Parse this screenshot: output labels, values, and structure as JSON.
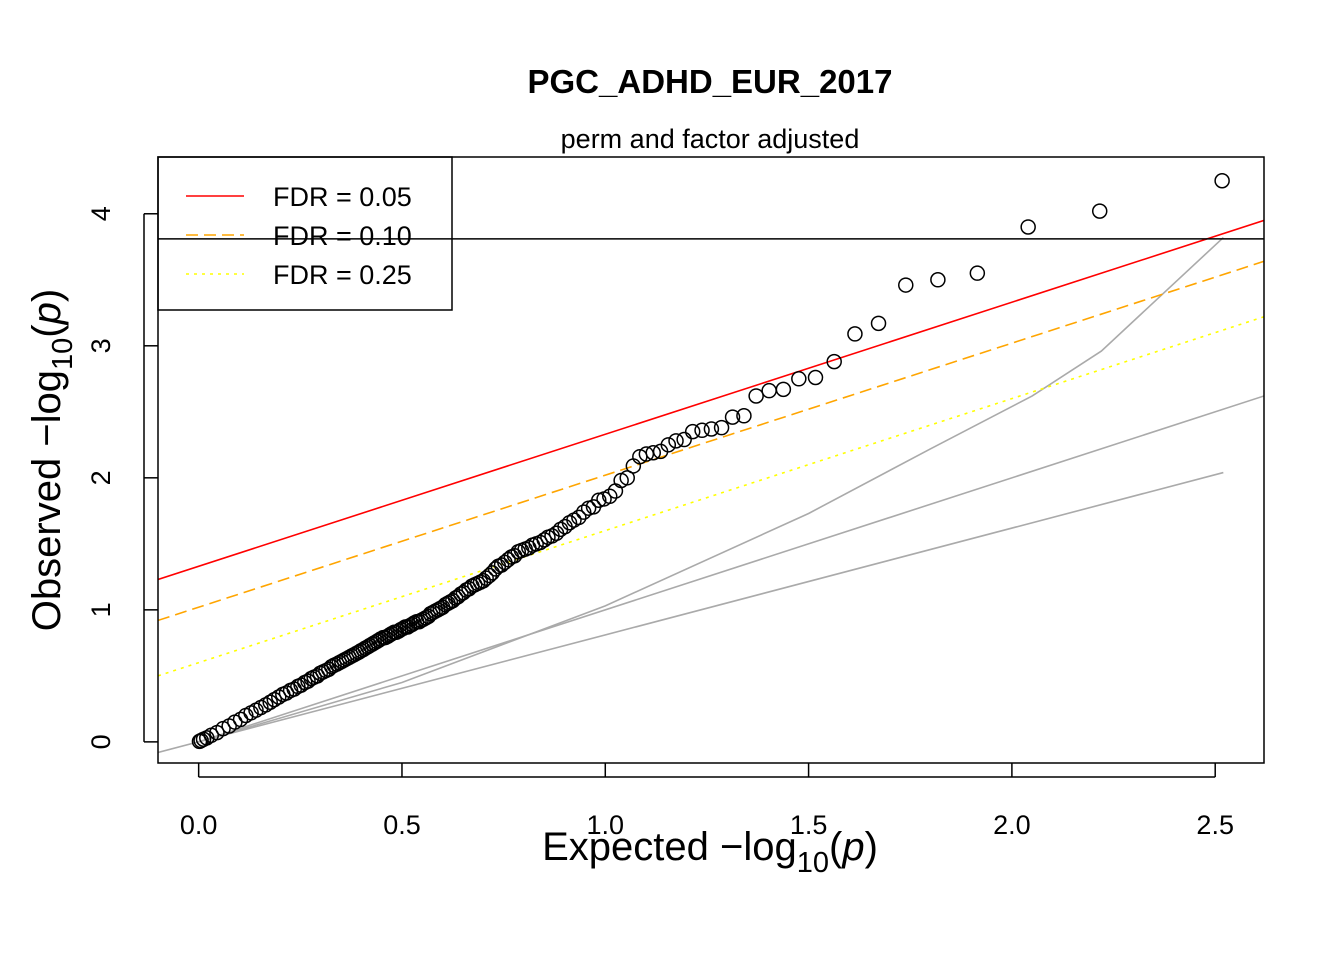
{
  "chart_data": {
    "type": "scatter",
    "title": "PGC_ADHD_EUR_2017",
    "subtitle": "perm and factor adjusted",
    "xlabel": {
      "prefix": "Expected  −log",
      "sub": "10",
      "open": "(",
      "italic": "p",
      "close": ")"
    },
    "ylabel": {
      "prefix": "Observed  −log",
      "sub": "10",
      "open": "(",
      "italic": "p",
      "close": ")"
    },
    "xlim": [
      -0.1,
      2.62
    ],
    "ylim": [
      -0.16,
      4.43
    ],
    "x_ticks": [
      {
        "value": 0,
        "label": "0.0"
      },
      {
        "value": 0.5,
        "label": "0.5"
      },
      {
        "value": 1.0,
        "label": "1.0"
      },
      {
        "value": 1.5,
        "label": "1.5"
      },
      {
        "value": 2.0,
        "label": "2.0"
      },
      {
        "value": 2.5,
        "label": "2.5"
      }
    ],
    "y_ticks": [
      {
        "value": 0,
        "label": "0"
      },
      {
        "value": 1,
        "label": "1"
      },
      {
        "value": 2,
        "label": "2"
      },
      {
        "value": 3,
        "label": "3"
      },
      {
        "value": 4,
        "label": "4"
      }
    ],
    "legend": {
      "position": "top-left",
      "entries": [
        {
          "label": "FDR = 0.05",
          "color": "#ff0000",
          "dash": "solid"
        },
        {
          "label": "FDR = 0.10",
          "color": "#ffa500",
          "dash": "dashed"
        },
        {
          "label": "FDR = 0.25",
          "color": "#ffff00",
          "dash": "dotted"
        }
      ]
    },
    "fdr_lines": [
      {
        "name": "FDR = 0.05",
        "intercept": 1.33,
        "slope": 1.0,
        "color": "#ff0000",
        "dash": "solid"
      },
      {
        "name": "FDR = 0.10",
        "intercept": 1.02,
        "slope": 1.0,
        "color": "#ffa500",
        "dash": "dashed"
      },
      {
        "name": "FDR = 0.25",
        "intercept": 0.6,
        "slope": 1.0,
        "color": "#ffff00",
        "dash": "dotted"
      }
    ],
    "hline": {
      "y": 3.81,
      "color": "#000000"
    },
    "reference_lines": [
      {
        "points": [
          [
            -0.1,
            -0.08
          ],
          [
            2.52,
            2.04
          ]
        ],
        "color": "#aaaaaa"
      },
      {
        "points": [
          [
            0,
            0
          ],
          [
            2.62,
            2.62
          ]
        ],
        "color": "#aaaaaa"
      },
      {
        "points": [
          [
            0,
            0
          ],
          [
            0.5,
            0.45
          ],
          [
            1.0,
            1.03
          ],
          [
            1.5,
            1.73
          ],
          [
            1.8,
            2.22
          ],
          [
            2.05,
            2.62
          ],
          [
            2.22,
            2.96
          ],
          [
            2.52,
            3.82
          ]
        ],
        "color": "#aaaaaa"
      }
    ],
    "points": [
      [
        2.517,
        4.25
      ],
      [
        2.216,
        4.02
      ],
      [
        2.04,
        3.9
      ],
      [
        1.915,
        3.55
      ],
      [
        1.818,
        3.5
      ],
      [
        1.739,
        3.46
      ],
      [
        1.672,
        3.17
      ],
      [
        1.614,
        3.09
      ],
      [
        1.563,
        2.88
      ],
      [
        1.517,
        2.76
      ],
      [
        1.476,
        2.75
      ],
      [
        1.438,
        2.67
      ],
      [
        1.403,
        2.66
      ],
      [
        1.371,
        2.62
      ],
      [
        1.341,
        2.47
      ],
      [
        1.313,
        2.46
      ],
      [
        1.286,
        2.38
      ],
      [
        1.261,
        2.37
      ],
      [
        1.238,
        2.36
      ],
      [
        1.215,
        2.35
      ],
      [
        1.194,
        2.29
      ],
      [
        1.174,
        2.28
      ],
      [
        1.155,
        2.25
      ],
      [
        1.136,
        2.2
      ],
      [
        1.118,
        2.19
      ],
      [
        1.101,
        2.18
      ],
      [
        1.085,
        2.16
      ],
      [
        1.069,
        2.09
      ],
      [
        1.054,
        2.0
      ],
      [
        1.039,
        1.98
      ],
      [
        1.025,
        1.9
      ],
      [
        1.011,
        1.86
      ],
      [
        0.997,
        1.84
      ],
      [
        0.984,
        1.83
      ],
      [
        0.971,
        1.78
      ],
      [
        0.959,
        1.77
      ],
      [
        0.947,
        1.74
      ],
      [
        0.935,
        1.7
      ],
      [
        0.923,
        1.68
      ],
      [
        0.912,
        1.66
      ],
      [
        0.901,
        1.63
      ],
      [
        0.89,
        1.61
      ],
      [
        0.88,
        1.58
      ],
      [
        0.869,
        1.56
      ],
      [
        0.859,
        1.55
      ],
      [
        0.85,
        1.53
      ],
      [
        0.84,
        1.51
      ],
      [
        0.83,
        1.5
      ],
      [
        0.821,
        1.49
      ],
      [
        0.812,
        1.47
      ],
      [
        0.803,
        1.46
      ],
      [
        0.794,
        1.45
      ],
      [
        0.786,
        1.44
      ],
      [
        0.777,
        1.41
      ],
      [
        0.769,
        1.4
      ],
      [
        0.761,
        1.38
      ],
      [
        0.753,
        1.36
      ],
      [
        0.745,
        1.34
      ],
      [
        0.737,
        1.33
      ],
      [
        0.73,
        1.31
      ],
      [
        0.722,
        1.28
      ],
      [
        0.715,
        1.26
      ],
      [
        0.707,
        1.24
      ],
      [
        0.7,
        1.22
      ],
      [
        0.693,
        1.21
      ],
      [
        0.686,
        1.2
      ],
      [
        0.679,
        1.19
      ],
      [
        0.672,
        1.18
      ],
      [
        0.665,
        1.16
      ],
      [
        0.658,
        1.15
      ],
      [
        0.651,
        1.13
      ],
      [
        0.645,
        1.12
      ],
      [
        0.638,
        1.1
      ],
      [
        0.632,
        1.09
      ],
      [
        0.625,
        1.07
      ],
      [
        0.619,
        1.06
      ],
      [
        0.613,
        1.05
      ],
      [
        0.607,
        1.04
      ],
      [
        0.6,
        1.02
      ],
      [
        0.594,
        1.01
      ],
      [
        0.588,
        1.0
      ],
      [
        0.582,
        0.99
      ],
      [
        0.576,
        0.98
      ],
      [
        0.57,
        0.97
      ],
      [
        0.565,
        0.95
      ],
      [
        0.559,
        0.94
      ],
      [
        0.553,
        0.93
      ],
      [
        0.547,
        0.92
      ],
      [
        0.542,
        0.91
      ],
      [
        0.536,
        0.91
      ],
      [
        0.53,
        0.9
      ],
      [
        0.525,
        0.89
      ],
      [
        0.519,
        0.88
      ],
      [
        0.514,
        0.87
      ],
      [
        0.508,
        0.87
      ],
      [
        0.503,
        0.86
      ],
      [
        0.497,
        0.85
      ],
      [
        0.492,
        0.84
      ],
      [
        0.486,
        0.83
      ],
      [
        0.481,
        0.83
      ],
      [
        0.475,
        0.82
      ],
      [
        0.47,
        0.81
      ],
      [
        0.465,
        0.8
      ],
      [
        0.459,
        0.79
      ],
      [
        0.454,
        0.79
      ],
      [
        0.448,
        0.78
      ],
      [
        0.443,
        0.77
      ],
      [
        0.438,
        0.76
      ],
      [
        0.432,
        0.75
      ],
      [
        0.427,
        0.74
      ],
      [
        0.421,
        0.73
      ],
      [
        0.416,
        0.72
      ],
      [
        0.41,
        0.71
      ],
      [
        0.405,
        0.7
      ],
      [
        0.399,
        0.69
      ],
      [
        0.394,
        0.68
      ],
      [
        0.388,
        0.67
      ],
      [
        0.382,
        0.66
      ],
      [
        0.376,
        0.65
      ],
      [
        0.37,
        0.64
      ],
      [
        0.364,
        0.63
      ],
      [
        0.358,
        0.62
      ],
      [
        0.352,
        0.61
      ],
      [
        0.346,
        0.6
      ],
      [
        0.34,
        0.59
      ],
      [
        0.333,
        0.58
      ],
      [
        0.327,
        0.57
      ],
      [
        0.32,
        0.55
      ],
      [
        0.313,
        0.54
      ],
      [
        0.306,
        0.53
      ],
      [
        0.299,
        0.52
      ],
      [
        0.292,
        0.5
      ],
      [
        0.284,
        0.49
      ],
      [
        0.277,
        0.48
      ],
      [
        0.269,
        0.46
      ],
      [
        0.261,
        0.45
      ],
      [
        0.252,
        0.43
      ],
      [
        0.244,
        0.42
      ],
      [
        0.235,
        0.4
      ],
      [
        0.226,
        0.39
      ],
      [
        0.216,
        0.37
      ],
      [
        0.207,
        0.36
      ],
      [
        0.197,
        0.34
      ],
      [
        0.186,
        0.32
      ],
      [
        0.176,
        0.3
      ],
      [
        0.165,
        0.28
      ],
      [
        0.153,
        0.26
      ],
      [
        0.141,
        0.24
      ],
      [
        0.129,
        0.22
      ],
      [
        0.116,
        0.2
      ],
      [
        0.103,
        0.17
      ],
      [
        0.089,
        0.15
      ],
      [
        0.075,
        0.12
      ],
      [
        0.06,
        0.1
      ],
      [
        0.045,
        0.07
      ],
      [
        0.031,
        0.05
      ],
      [
        0.02,
        0.03
      ],
      [
        0.012,
        0.02
      ],
      [
        0.006,
        0.01
      ],
      [
        0.002,
        0.004
      ]
    ]
  }
}
